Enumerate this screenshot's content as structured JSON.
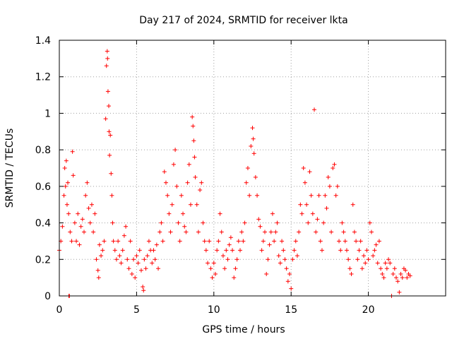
{
  "chart_data": {
    "type": "scatter",
    "title": "Day 217 of 2024, SRMTID for receiver lkta",
    "xlabel": "GPS time / hours",
    "ylabel": "SRMTID / TECUs",
    "xlim": [
      0,
      25
    ],
    "ylim": [
      0,
      1.4
    ],
    "x_ticks": [
      0,
      5,
      10,
      15,
      20
    ],
    "x_tick_labels": [
      "0",
      "5",
      "10",
      "15",
      "20"
    ],
    "y_ticks": [
      0,
      0.2,
      0.4,
      0.6,
      0.8,
      1.0,
      1.2,
      1.4
    ],
    "y_tick_labels": [
      "0",
      "0.2",
      "0.4",
      "0.6",
      "0.8",
      "1",
      "1.2",
      "1.4"
    ],
    "grid": true,
    "marker": "plus",
    "color": "#ff0000",
    "series": [
      {
        "name": "SRMTID",
        "points": [
          [
            0.0,
            0.25
          ],
          [
            0.1,
            0.3
          ],
          [
            0.2,
            0.38
          ],
          [
            0.3,
            0.55
          ],
          [
            0.35,
            0.7
          ],
          [
            0.4,
            0.6
          ],
          [
            0.45,
            0.74
          ],
          [
            0.5,
            0.5
          ],
          [
            0.55,
            0.62
          ],
          [
            0.6,
            0.45
          ],
          [
            0.62,
            0.0
          ],
          [
            0.65,
            0.0
          ],
          [
            0.7,
            0.35
          ],
          [
            0.8,
            0.3
          ],
          [
            0.85,
            0.79
          ],
          [
            0.9,
            0.66
          ],
          [
            1.0,
            0.4
          ],
          [
            1.1,
            0.3
          ],
          [
            1.2,
            0.45
          ],
          [
            1.3,
            0.28
          ],
          [
            1.4,
            0.38
          ],
          [
            1.5,
            0.42
          ],
          [
            1.6,
            0.35
          ],
          [
            1.7,
            0.55
          ],
          [
            1.8,
            0.62
          ],
          [
            1.9,
            0.48
          ],
          [
            2.0,
            0.4
          ],
          [
            2.1,
            0.5
          ],
          [
            2.2,
            0.35
          ],
          [
            2.3,
            0.45
          ],
          [
            2.4,
            0.2
          ],
          [
            2.5,
            0.14
          ],
          [
            2.55,
            0.1
          ],
          [
            2.6,
            0.28
          ],
          [
            2.7,
            0.22
          ],
          [
            2.8,
            0.25
          ],
          [
            2.9,
            0.3
          ],
          [
            3.0,
            0.97
          ],
          [
            3.05,
            1.26
          ],
          [
            3.1,
            1.34
          ],
          [
            3.12,
            1.3
          ],
          [
            3.15,
            1.12
          ],
          [
            3.2,
            1.04
          ],
          [
            3.22,
            0.9
          ],
          [
            3.25,
            0.77
          ],
          [
            3.3,
            0.88
          ],
          [
            3.35,
            0.67
          ],
          [
            3.4,
            0.55
          ],
          [
            3.45,
            0.4
          ],
          [
            3.5,
            0.3
          ],
          [
            3.6,
            0.25
          ],
          [
            3.7,
            0.2
          ],
          [
            3.8,
            0.3
          ],
          [
            3.9,
            0.22
          ],
          [
            4.0,
            0.18
          ],
          [
            4.1,
            0.25
          ],
          [
            4.2,
            0.33
          ],
          [
            4.3,
            0.38
          ],
          [
            4.4,
            0.2
          ],
          [
            4.5,
            0.15
          ],
          [
            4.6,
            0.3
          ],
          [
            4.7,
            0.12
          ],
          [
            4.8,
            0.2
          ],
          [
            4.9,
            0.1
          ],
          [
            5.0,
            0.22
          ],
          [
            5.1,
            0.18
          ],
          [
            5.2,
            0.25
          ],
          [
            5.3,
            0.14
          ],
          [
            5.4,
            0.05
          ],
          [
            5.45,
            0.03
          ],
          [
            5.5,
            0.2
          ],
          [
            5.6,
            0.15
          ],
          [
            5.7,
            0.22
          ],
          [
            5.8,
            0.3
          ],
          [
            5.9,
            0.25
          ],
          [
            6.0,
            0.18
          ],
          [
            6.1,
            0.25
          ],
          [
            6.2,
            0.2
          ],
          [
            6.3,
            0.28
          ],
          [
            6.4,
            0.15
          ],
          [
            6.5,
            0.35
          ],
          [
            6.6,
            0.4
          ],
          [
            6.7,
            0.3
          ],
          [
            6.8,
            0.68
          ],
          [
            6.9,
            0.62
          ],
          [
            7.0,
            0.55
          ],
          [
            7.1,
            0.45
          ],
          [
            7.2,
            0.35
          ],
          [
            7.3,
            0.5
          ],
          [
            7.4,
            0.72
          ],
          [
            7.5,
            0.8
          ],
          [
            7.6,
            0.6
          ],
          [
            7.7,
            0.4
          ],
          [
            7.8,
            0.3
          ],
          [
            7.9,
            0.55
          ],
          [
            8.0,
            0.45
          ],
          [
            8.1,
            0.38
          ],
          [
            8.2,
            0.35
          ],
          [
            8.3,
            0.62
          ],
          [
            8.4,
            0.72
          ],
          [
            8.5,
            0.5
          ],
          [
            8.6,
            0.98
          ],
          [
            8.65,
            0.93
          ],
          [
            8.7,
            0.85
          ],
          [
            8.75,
            0.76
          ],
          [
            8.8,
            0.65
          ],
          [
            8.9,
            0.5
          ],
          [
            9.0,
            0.35
          ],
          [
            9.1,
            0.58
          ],
          [
            9.2,
            0.62
          ],
          [
            9.3,
            0.4
          ],
          [
            9.4,
            0.3
          ],
          [
            9.5,
            0.25
          ],
          [
            9.6,
            0.18
          ],
          [
            9.7,
            0.3
          ],
          [
            9.8,
            0.15
          ],
          [
            9.9,
            0.1
          ],
          [
            10.0,
            0.18
          ],
          [
            10.1,
            0.12
          ],
          [
            10.2,
            0.25
          ],
          [
            10.3,
            0.3
          ],
          [
            10.4,
            0.45
          ],
          [
            10.5,
            0.35
          ],
          [
            10.6,
            0.22
          ],
          [
            10.7,
            0.15
          ],
          [
            10.8,
            0.25
          ],
          [
            10.9,
            0.2
          ],
          [
            11.0,
            0.28
          ],
          [
            11.1,
            0.32
          ],
          [
            11.2,
            0.25
          ],
          [
            11.3,
            0.1
          ],
          [
            11.4,
            0.15
          ],
          [
            11.5,
            0.2
          ],
          [
            11.6,
            0.3
          ],
          [
            11.7,
            0.25
          ],
          [
            11.8,
            0.35
          ],
          [
            11.9,
            0.3
          ],
          [
            12.0,
            0.4
          ],
          [
            12.1,
            0.62
          ],
          [
            12.2,
            0.7
          ],
          [
            12.3,
            0.55
          ],
          [
            12.4,
            0.82
          ],
          [
            12.5,
            0.92
          ],
          [
            12.55,
            0.86
          ],
          [
            12.6,
            0.78
          ],
          [
            12.7,
            0.65
          ],
          [
            12.8,
            0.55
          ],
          [
            12.9,
            0.42
          ],
          [
            13.0,
            0.38
          ],
          [
            13.1,
            0.25
          ],
          [
            13.2,
            0.3
          ],
          [
            13.3,
            0.35
          ],
          [
            13.4,
            0.12
          ],
          [
            13.5,
            0.2
          ],
          [
            13.6,
            0.28
          ],
          [
            13.7,
            0.35
          ],
          [
            13.8,
            0.45
          ],
          [
            13.9,
            0.3
          ],
          [
            14.0,
            0.35
          ],
          [
            14.1,
            0.4
          ],
          [
            14.2,
            0.22
          ],
          [
            14.3,
            0.18
          ],
          [
            14.4,
            0.3
          ],
          [
            14.5,
            0.25
          ],
          [
            14.6,
            0.2
          ],
          [
            14.7,
            0.15
          ],
          [
            14.8,
            0.08
          ],
          [
            14.9,
            0.12
          ],
          [
            15.0,
            0.04
          ],
          [
            15.1,
            0.2
          ],
          [
            15.2,
            0.25
          ],
          [
            15.3,
            0.3
          ],
          [
            15.4,
            0.22
          ],
          [
            15.5,
            0.35
          ],
          [
            15.6,
            0.5
          ],
          [
            15.7,
            0.45
          ],
          [
            15.8,
            0.7
          ],
          [
            15.9,
            0.62
          ],
          [
            16.0,
            0.5
          ],
          [
            16.1,
            0.4
          ],
          [
            16.2,
            0.68
          ],
          [
            16.3,
            0.55
          ],
          [
            16.4,
            0.45
          ],
          [
            16.5,
            1.02
          ],
          [
            16.6,
            0.35
          ],
          [
            16.7,
            0.42
          ],
          [
            16.8,
            0.55
          ],
          [
            16.9,
            0.3
          ],
          [
            17.0,
            0.25
          ],
          [
            17.1,
            0.4
          ],
          [
            17.2,
            0.55
          ],
          [
            17.3,
            0.48
          ],
          [
            17.4,
            0.65
          ],
          [
            17.5,
            0.6
          ],
          [
            17.6,
            0.35
          ],
          [
            17.7,
            0.7
          ],
          [
            17.8,
            0.72
          ],
          [
            17.9,
            0.55
          ],
          [
            18.0,
            0.6
          ],
          [
            18.1,
            0.3
          ],
          [
            18.2,
            0.25
          ],
          [
            18.3,
            0.4
          ],
          [
            18.4,
            0.35
          ],
          [
            18.5,
            0.3
          ],
          [
            18.6,
            0.25
          ],
          [
            18.7,
            0.2
          ],
          [
            18.8,
            0.15
          ],
          [
            18.9,
            0.12
          ],
          [
            19.0,
            0.5
          ],
          [
            19.1,
            0.35
          ],
          [
            19.2,
            0.3
          ],
          [
            19.3,
            0.2
          ],
          [
            19.4,
            0.25
          ],
          [
            19.5,
            0.3
          ],
          [
            19.6,
            0.15
          ],
          [
            19.7,
            0.22
          ],
          [
            19.8,
            0.18
          ],
          [
            19.9,
            0.25
          ],
          [
            20.0,
            0.2
          ],
          [
            20.1,
            0.4
          ],
          [
            20.2,
            0.35
          ],
          [
            20.3,
            0.22
          ],
          [
            20.4,
            0.25
          ],
          [
            20.5,
            0.28
          ],
          [
            20.6,
            0.18
          ],
          [
            20.7,
            0.3
          ],
          [
            20.8,
            0.15
          ],
          [
            20.9,
            0.12
          ],
          [
            21.0,
            0.1
          ],
          [
            21.1,
            0.18
          ],
          [
            21.2,
            0.15
          ],
          [
            21.3,
            0.2
          ],
          [
            21.4,
            0.18
          ],
          [
            21.5,
            0.0
          ],
          [
            21.6,
            0.12
          ],
          [
            21.7,
            0.15
          ],
          [
            21.8,
            0.1
          ],
          [
            21.9,
            0.08
          ],
          [
            22.0,
            0.02
          ],
          [
            22.1,
            0.12
          ],
          [
            22.2,
            0.1
          ],
          [
            22.3,
            0.15
          ],
          [
            22.4,
            0.14
          ],
          [
            22.5,
            0.1
          ],
          [
            22.6,
            0.12
          ],
          [
            22.7,
            0.11
          ]
        ]
      }
    ]
  }
}
